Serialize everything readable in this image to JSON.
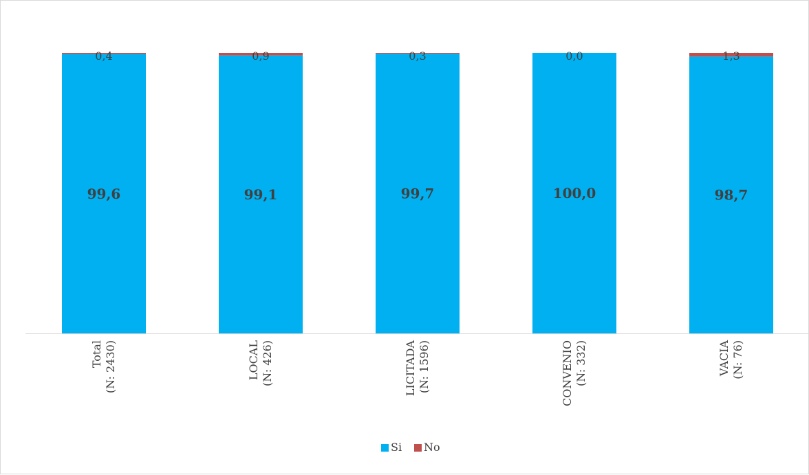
{
  "chart_data": {
    "type": "bar",
    "stacked": true,
    "categories": [
      "Total\n(N: 2430)",
      "LOCAL\n(N: 426)",
      "LICITADA\n(N: 1596)",
      "CONVENIO\n(N: 332)",
      "VACIA\n(N: 76)"
    ],
    "series": [
      {
        "name": "Si",
        "color": "#00b0f0",
        "values": [
          99.6,
          99.1,
          99.7,
          100.0,
          98.7
        ],
        "labels": [
          "99,6",
          "99,1",
          "99,7",
          "100,0",
          "98,7"
        ]
      },
      {
        "name": "No",
        "color": "#c0504d",
        "values": [
          0.4,
          0.9,
          0.3,
          0.0,
          1.3
        ],
        "labels": [
          "0,4",
          "0,9",
          "0,3",
          "0,0",
          "1,3"
        ]
      }
    ],
    "ylim": [
      0,
      100
    ],
    "grid": false,
    "legend_position": "bottom",
    "title": "",
    "xlabel": "",
    "ylabel": ""
  }
}
